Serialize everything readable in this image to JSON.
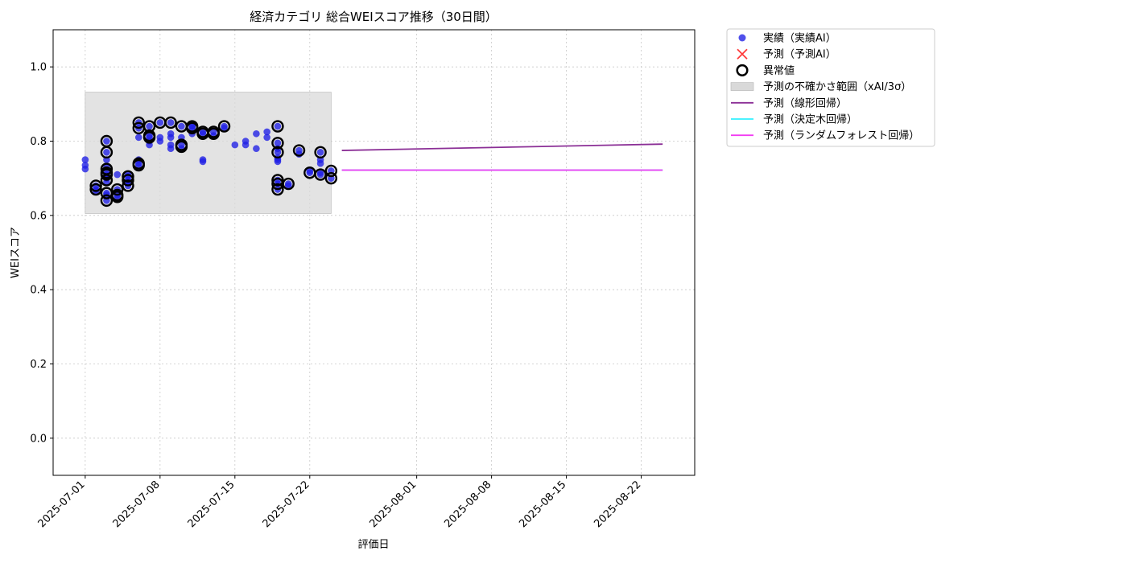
{
  "chart_data": {
    "type": "scatter",
    "title": "経済カテゴリ 総合WEIスコア推移（30日間）",
    "xlabel": "評価日",
    "ylabel": "WEIスコア",
    "xlim": [
      "2025-06-28",
      "2025-08-27"
    ],
    "ylim": [
      -0.1,
      1.1
    ],
    "yticks": [
      0.0,
      0.2,
      0.4,
      0.6,
      0.8,
      1.0
    ],
    "xticks": [
      "2025-07-01",
      "2025-07-08",
      "2025-07-15",
      "2025-07-22",
      "2025-08-01",
      "2025-08-08",
      "2025-08-15",
      "2025-08-22"
    ],
    "grid": true,
    "legend_position": "outside-top-right",
    "colors": {
      "actual": "#1f1fe6",
      "predicted_ai": "#ff3b3b",
      "anomaly": "#000000",
      "uncertainty": "#d9d9d9",
      "linear": "#8b2f96",
      "decision_tree": "#33f0ff",
      "random_forest": "#f23cf2"
    },
    "legend": [
      {
        "key": "actual",
        "label": "実績（実績AI）",
        "marker": "dot"
      },
      {
        "key": "predicted_ai",
        "label": "予測（予測AI）",
        "marker": "x"
      },
      {
        "key": "anomaly",
        "label": "異常値",
        "marker": "ring"
      },
      {
        "key": "uncertainty",
        "label": "予測の不確かさ範囲（xAI/3σ）",
        "marker": "box"
      },
      {
        "key": "linear",
        "label": "予測（線形回帰）",
        "marker": "line"
      },
      {
        "key": "decision_tree",
        "label": "予測（決定木回帰）",
        "marker": "line"
      },
      {
        "key": "random_forest",
        "label": "予測（ランダムフォレスト回帰）",
        "marker": "line"
      }
    ],
    "uncertainty_band": {
      "x": [
        "2025-07-01",
        "2025-07-24"
      ],
      "y": [
        0.605,
        0.932
      ]
    },
    "series": [
      {
        "name": "実績（実績AI）",
        "points": [
          [
            "2025-07-01",
            0.75
          ],
          [
            "2025-07-01",
            0.725
          ],
          [
            "2025-07-01",
            0.735
          ],
          [
            "2025-07-02",
            0.68
          ],
          [
            "2025-07-02",
            0.67
          ],
          [
            "2025-07-02",
            0.665
          ],
          [
            "2025-07-03",
            0.66
          ],
          [
            "2025-07-03",
            0.655
          ],
          [
            "2025-07-03",
            0.64
          ],
          [
            "2025-07-03",
            0.72
          ],
          [
            "2025-07-03",
            0.71
          ],
          [
            "2025-07-03",
            0.7
          ],
          [
            "2025-07-03",
            0.69
          ],
          [
            "2025-07-03",
            0.8
          ],
          [
            "2025-07-03",
            0.77
          ],
          [
            "2025-07-03",
            0.75
          ],
          [
            "2025-07-03",
            0.73
          ],
          [
            "2025-07-04",
            0.71
          ],
          [
            "2025-07-04",
            0.67
          ],
          [
            "2025-07-04",
            0.655
          ],
          [
            "2025-07-04",
            0.65
          ],
          [
            "2025-07-05",
            0.68
          ],
          [
            "2025-07-05",
            0.69
          ],
          [
            "2025-07-05",
            0.695
          ],
          [
            "2025-07-05",
            0.705
          ],
          [
            "2025-07-05",
            0.71
          ],
          [
            "2025-07-06",
            0.75
          ],
          [
            "2025-07-06",
            0.74
          ],
          [
            "2025-07-06",
            0.735
          ],
          [
            "2025-07-06",
            0.85
          ],
          [
            "2025-07-06",
            0.835
          ],
          [
            "2025-07-06",
            0.81
          ],
          [
            "2025-07-07",
            0.81
          ],
          [
            "2025-07-07",
            0.84
          ],
          [
            "2025-07-07",
            0.815
          ],
          [
            "2025-07-07",
            0.79
          ],
          [
            "2025-07-07",
            0.8
          ],
          [
            "2025-07-08",
            0.81
          ],
          [
            "2025-07-08",
            0.85
          ],
          [
            "2025-07-08",
            0.8
          ],
          [
            "2025-07-09",
            0.79
          ],
          [
            "2025-07-09",
            0.81
          ],
          [
            "2025-07-09",
            0.85
          ],
          [
            "2025-07-09",
            0.82
          ],
          [
            "2025-07-09",
            0.78
          ],
          [
            "2025-07-10",
            0.81
          ],
          [
            "2025-07-10",
            0.79
          ],
          [
            "2025-07-10",
            0.78
          ],
          [
            "2025-07-10",
            0.84
          ],
          [
            "2025-07-11",
            0.835
          ],
          [
            "2025-07-11",
            0.84
          ],
          [
            "2025-07-11",
            0.84
          ],
          [
            "2025-07-11",
            0.82
          ],
          [
            "2025-07-12",
            0.82
          ],
          [
            "2025-07-12",
            0.75
          ],
          [
            "2025-07-12",
            0.745
          ],
          [
            "2025-07-12",
            0.825
          ],
          [
            "2025-07-13",
            0.825
          ],
          [
            "2025-07-13",
            0.815
          ],
          [
            "2025-07-14",
            0.84
          ],
          [
            "2025-07-14",
            0.835
          ],
          [
            "2025-07-15",
            0.79
          ],
          [
            "2025-07-16",
            0.79
          ],
          [
            "2025-07-16",
            0.8
          ],
          [
            "2025-07-17",
            0.82
          ],
          [
            "2025-07-17",
            0.78
          ],
          [
            "2025-07-18",
            0.81
          ],
          [
            "2025-07-18",
            0.825
          ],
          [
            "2025-07-19",
            0.84
          ],
          [
            "2025-07-19",
            0.795
          ],
          [
            "2025-07-19",
            0.78
          ],
          [
            "2025-07-19",
            0.77
          ],
          [
            "2025-07-19",
            0.755
          ],
          [
            "2025-07-19",
            0.745
          ],
          [
            "2025-07-19",
            0.695
          ],
          [
            "2025-07-19",
            0.685
          ],
          [
            "2025-07-19",
            0.67
          ],
          [
            "2025-07-19",
            0.75
          ],
          [
            "2025-07-20",
            0.685
          ],
          [
            "2025-07-20",
            0.68
          ],
          [
            "2025-07-21",
            0.775
          ],
          [
            "2025-07-21",
            0.765
          ],
          [
            "2025-07-22",
            0.715
          ],
          [
            "2025-07-22",
            0.72
          ],
          [
            "2025-07-23",
            0.77
          ],
          [
            "2025-07-23",
            0.75
          ],
          [
            "2025-07-23",
            0.74
          ],
          [
            "2025-07-23",
            0.715
          ],
          [
            "2025-07-23",
            0.71
          ],
          [
            "2025-07-24",
            0.72
          ],
          [
            "2025-07-24",
            0.7
          ]
        ]
      },
      {
        "name": "異常値",
        "points": [
          [
            "2025-07-02",
            0.68
          ],
          [
            "2025-07-02",
            0.67
          ],
          [
            "2025-07-03",
            0.66
          ],
          [
            "2025-07-03",
            0.64
          ],
          [
            "2025-07-03",
            0.8
          ],
          [
            "2025-07-03",
            0.77
          ],
          [
            "2025-07-03",
            0.725
          ],
          [
            "2025-07-03",
            0.715
          ],
          [
            "2025-07-03",
            0.71
          ],
          [
            "2025-07-03",
            0.695
          ],
          [
            "2025-07-04",
            0.67
          ],
          [
            "2025-07-04",
            0.655
          ],
          [
            "2025-07-04",
            0.65
          ],
          [
            "2025-07-05",
            0.68
          ],
          [
            "2025-07-05",
            0.695
          ],
          [
            "2025-07-05",
            0.705
          ],
          [
            "2025-07-06",
            0.74
          ],
          [
            "2025-07-06",
            0.735
          ],
          [
            "2025-07-06",
            0.85
          ],
          [
            "2025-07-06",
            0.835
          ],
          [
            "2025-07-07",
            0.81
          ],
          [
            "2025-07-07",
            0.84
          ],
          [
            "2025-07-07",
            0.815
          ],
          [
            "2025-07-08",
            0.85
          ],
          [
            "2025-07-09",
            0.85
          ],
          [
            "2025-07-10",
            0.79
          ],
          [
            "2025-07-10",
            0.785
          ],
          [
            "2025-07-10",
            0.84
          ],
          [
            "2025-07-11",
            0.835
          ],
          [
            "2025-07-11",
            0.84
          ],
          [
            "2025-07-12",
            0.82
          ],
          [
            "2025-07-12",
            0.825
          ],
          [
            "2025-07-13",
            0.825
          ],
          [
            "2025-07-13",
            0.82
          ],
          [
            "2025-07-14",
            0.84
          ],
          [
            "2025-07-19",
            0.84
          ],
          [
            "2025-07-19",
            0.795
          ],
          [
            "2025-07-19",
            0.77
          ],
          [
            "2025-07-19",
            0.695
          ],
          [
            "2025-07-19",
            0.685
          ],
          [
            "2025-07-19",
            0.67
          ],
          [
            "2025-07-20",
            0.685
          ],
          [
            "2025-07-21",
            0.775
          ],
          [
            "2025-07-22",
            0.715
          ],
          [
            "2025-07-23",
            0.77
          ],
          [
            "2025-07-23",
            0.71
          ],
          [
            "2025-07-24",
            0.72
          ],
          [
            "2025-07-24",
            0.7
          ]
        ]
      },
      {
        "name": "予測（線形回帰）",
        "points": [
          [
            "2025-07-25",
            0.775
          ],
          [
            "2025-08-24",
            0.792
          ]
        ]
      },
      {
        "name": "予測（決定木回帰）",
        "points": [
          [
            "2025-07-25",
            0.722
          ],
          [
            "2025-08-24",
            0.722
          ]
        ]
      },
      {
        "name": "予測（ランダムフォレスト回帰）",
        "points": [
          [
            "2025-07-25",
            0.722
          ],
          [
            "2025-08-24",
            0.722
          ]
        ]
      }
    ]
  }
}
